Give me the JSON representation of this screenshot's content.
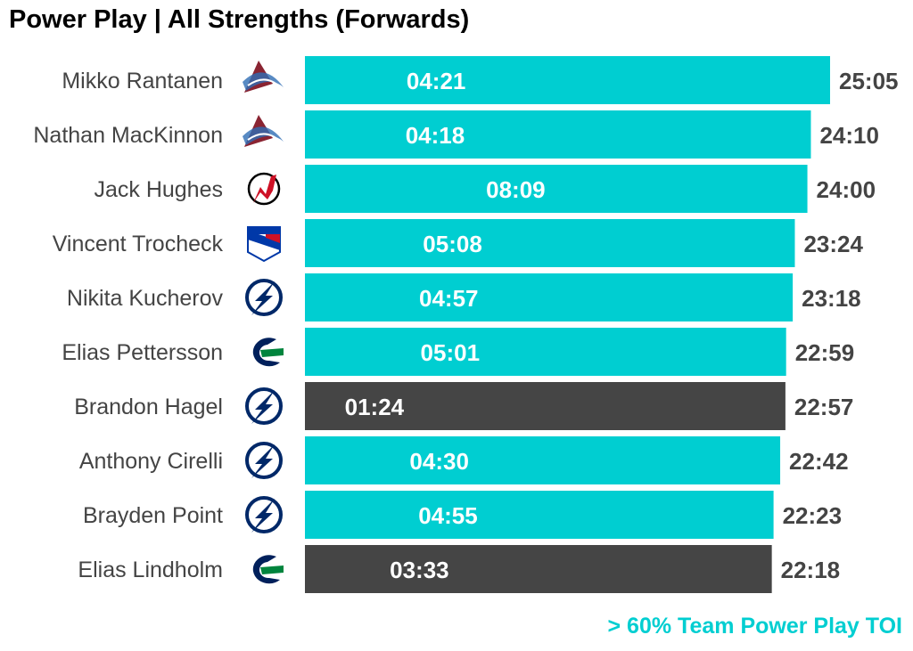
{
  "chart_data": {
    "type": "bar",
    "orientation": "horizontal",
    "title": "Power Play | All Strengths (Forwards)",
    "caption": "> 60% Team Power Play TOI",
    "xlabel": "",
    "ylabel": "",
    "xlim_seconds": [
      0,
      1505
    ],
    "colors": {
      "above_60": "#00CED1",
      "below_60": "#454545",
      "name_text": "#444444",
      "total_text": "#444444",
      "caption": "#00CED1"
    },
    "rows": [
      {
        "player": "Mikko Rantanen",
        "team_logo": "avalanche-logo-icon",
        "total_toi": "25:05",
        "total_seconds": 1505,
        "pp_toi": "04:21",
        "pp_seconds": 261,
        "above_60": true
      },
      {
        "player": "Nathan MacKinnon",
        "team_logo": "avalanche-logo-icon",
        "total_toi": "24:10",
        "total_seconds": 1450,
        "pp_toi": "04:18",
        "pp_seconds": 258,
        "above_60": true
      },
      {
        "player": "Jack Hughes",
        "team_logo": "devils-logo-icon",
        "total_toi": "24:00",
        "total_seconds": 1440,
        "pp_toi": "08:09",
        "pp_seconds": 489,
        "above_60": true
      },
      {
        "player": "Vincent Trocheck",
        "team_logo": "rangers-logo-icon",
        "total_toi": "23:24",
        "total_seconds": 1404,
        "pp_toi": "05:08",
        "pp_seconds": 308,
        "above_60": true
      },
      {
        "player": "Nikita Kucherov",
        "team_logo": "lightning-logo-icon",
        "total_toi": "23:18",
        "total_seconds": 1398,
        "pp_toi": "04:57",
        "pp_seconds": 297,
        "above_60": true
      },
      {
        "player": "Elias Pettersson",
        "team_logo": "canucks-logo-icon",
        "total_toi": "22:59",
        "total_seconds": 1379,
        "pp_toi": "05:01",
        "pp_seconds": 301,
        "above_60": true
      },
      {
        "player": "Brandon Hagel",
        "team_logo": "lightning-logo-icon",
        "total_toi": "22:57",
        "total_seconds": 1377,
        "pp_toi": "01:24",
        "pp_seconds": 84,
        "above_60": false
      },
      {
        "player": "Anthony Cirelli",
        "team_logo": "lightning-logo-icon",
        "total_toi": "22:42",
        "total_seconds": 1362,
        "pp_toi": "04:30",
        "pp_seconds": 270,
        "above_60": true
      },
      {
        "player": "Brayden Point",
        "team_logo": "lightning-logo-icon",
        "total_toi": "22:23",
        "total_seconds": 1343,
        "pp_toi": "04:55",
        "pp_seconds": 295,
        "above_60": true
      },
      {
        "player": "Elias Lindholm",
        "team_logo": "canucks-logo-icon",
        "total_toi": "22:18",
        "total_seconds": 1338,
        "pp_toi": "03:33",
        "pp_seconds": 213,
        "above_60": false
      }
    ]
  }
}
